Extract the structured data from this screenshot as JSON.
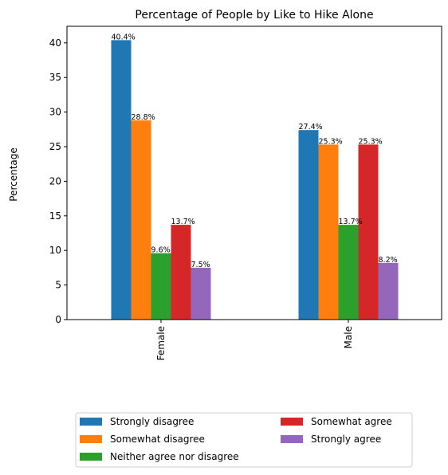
{
  "chart_data": {
    "type": "bar",
    "title": "Percentage of People by Like to Hike Alone",
    "xlabel": "",
    "ylabel": "Percentage",
    "categories": [
      "Female",
      "Male"
    ],
    "ylim": [
      0,
      42.4
    ],
    "yticks": [
      0,
      5,
      10,
      15,
      20,
      25,
      30,
      35,
      40
    ],
    "grid": false,
    "legend_position": "bottom-center",
    "series": [
      {
        "name": "Strongly disagree",
        "color": "#1f77b4",
        "values": [
          40.4,
          27.4
        ],
        "labels": [
          "40.4%",
          "27.4%"
        ]
      },
      {
        "name": "Somewhat disagree",
        "color": "#ff7f0e",
        "values": [
          28.8,
          25.3
        ],
        "labels": [
          "28.8%",
          "25.3%"
        ]
      },
      {
        "name": "Neither agree nor disagree",
        "color": "#2ca02c",
        "values": [
          9.6,
          13.7
        ],
        "labels": [
          "9.6%",
          "13.7%"
        ]
      },
      {
        "name": "Somewhat agree",
        "color": "#d62728",
        "values": [
          13.7,
          25.3
        ],
        "labels": [
          "13.7%",
          "25.3%"
        ]
      },
      {
        "name": "Strongly agree",
        "color": "#9467bd",
        "values": [
          7.5,
          8.2
        ],
        "labels": [
          "7.5%",
          "8.2%"
        ]
      }
    ]
  }
}
